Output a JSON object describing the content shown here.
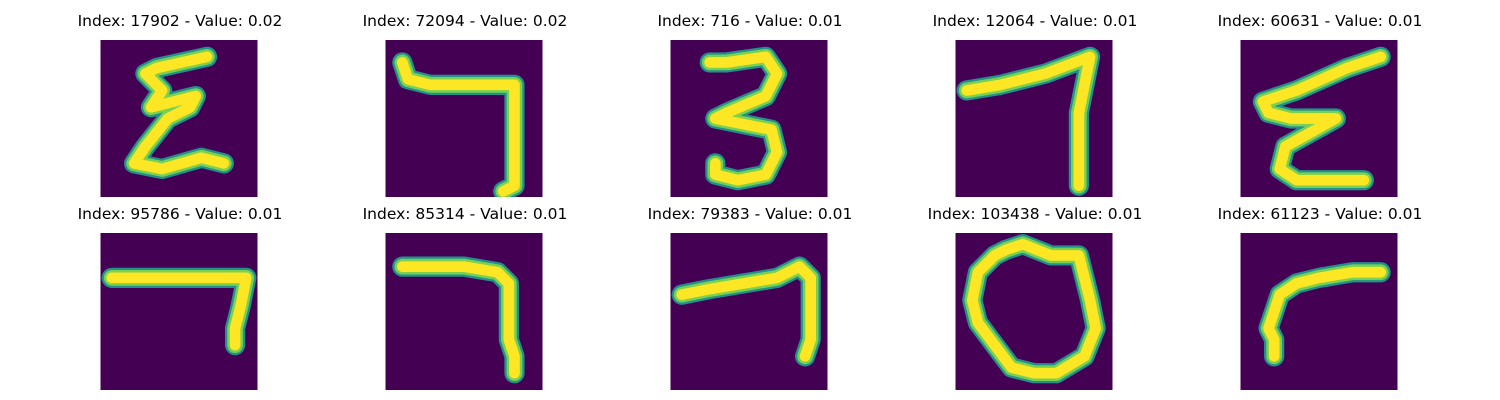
{
  "figure": {
    "panels": [
      {
        "title": "Index: 17902 - Value: 0.02",
        "glyph": "epsilon"
      },
      {
        "title": "Index: 72094 - Value: 0.02",
        "glyph": "seven-hook"
      },
      {
        "title": "Index: 716 - Value: 0.01",
        "glyph": "three"
      },
      {
        "title": "Index: 12064 - Value: 0.01",
        "glyph": "seven-slant"
      },
      {
        "title": "Index: 60631 - Value: 0.01",
        "glyph": "epsilon-slant"
      },
      {
        "title": "Index: 95786 - Value: 0.01",
        "glyph": "seven-flat"
      },
      {
        "title": "Index: 85314 - Value: 0.01",
        "glyph": "seven-corner"
      },
      {
        "title": "Index: 79383 - Value: 0.01",
        "glyph": "seven-wide"
      },
      {
        "title": "Index: 103438 - Value: 0.01",
        "glyph": "zero"
      },
      {
        "title": "Index: 61123 - Value: 0.01",
        "glyph": "gamma"
      }
    ],
    "colors": {
      "background": "#440154",
      "stroke_core": "#fde725",
      "stroke_edge": "#21918c",
      "stroke_mid": "#7ad151"
    }
  }
}
